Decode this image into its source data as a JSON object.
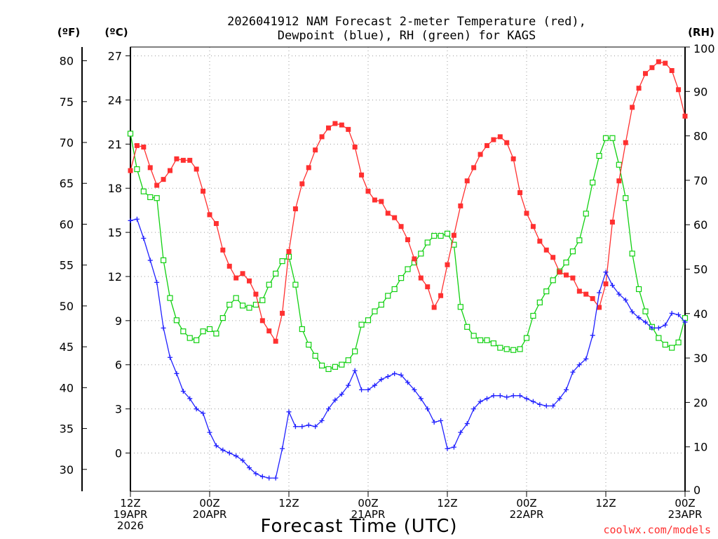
{
  "chart_data": {
    "type": "line",
    "title_line1": "2026041912 NAM Forecast 2-meter Temperature (red),",
    "title_line2": "Dewpoint (blue), RH (green) for KAGS",
    "unit_f": "(ºF)",
    "unit_c": "(ºC)",
    "unit_rh": "(RH)",
    "xlabel": "Forecast Time (UTC)",
    "credit": "coolwx.com/models",
    "x_range_hours": [
      0,
      84
    ],
    "x_ticks": [
      {
        "h": 0,
        "l1": "12Z",
        "l2": "19APR",
        "l3": "2026"
      },
      {
        "h": 12,
        "l1": "00Z",
        "l2": "20APR",
        "l3": ""
      },
      {
        "h": 24,
        "l1": "12Z",
        "l2": "",
        "l3": ""
      },
      {
        "h": 36,
        "l1": "00Z",
        "l2": "21APR",
        "l3": ""
      },
      {
        "h": 48,
        "l1": "12Z",
        "l2": "",
        "l3": ""
      },
      {
        "h": 60,
        "l1": "00Z",
        "l2": "22APR",
        "l3": ""
      },
      {
        "h": 72,
        "l1": "12Z",
        "l2": "",
        "l3": ""
      },
      {
        "h": 84,
        "l1": "00Z",
        "l2": "23APR",
        "l3": ""
      }
    ],
    "c_range": [
      -2.6,
      27.6
    ],
    "c_ticks": [
      0,
      3,
      6,
      9,
      12,
      15,
      18,
      21,
      24,
      27
    ],
    "f_ticks": [
      30,
      35,
      40,
      45,
      50,
      55,
      60,
      65,
      70,
      75,
      80
    ],
    "rh_range": [
      0,
      100
    ],
    "rh_ticks": [
      0,
      10,
      20,
      30,
      40,
      50,
      60,
      70,
      80,
      90,
      100
    ],
    "grid": true,
    "hours": [
      0,
      1,
      2,
      3,
      4,
      5,
      6,
      7,
      8,
      9,
      10,
      11,
      12,
      13,
      14,
      15,
      16,
      17,
      18,
      19,
      20,
      21,
      22,
      23,
      24,
      25,
      26,
      27,
      28,
      29,
      30,
      31,
      32,
      33,
      34,
      35,
      36,
      37,
      38,
      39,
      40,
      41,
      42,
      43,
      44,
      45,
      46,
      47,
      48,
      49,
      50,
      51,
      52,
      53,
      54,
      55,
      56,
      57,
      58,
      59,
      60,
      61,
      62,
      63,
      64,
      65,
      66,
      67,
      68,
      69,
      70,
      71,
      72,
      73,
      74,
      75,
      76,
      77,
      78,
      79,
      80,
      81,
      82,
      83,
      84
    ],
    "series": [
      {
        "name": "Temperature",
        "color": "#ff3030",
        "marker": "filled-square",
        "axis": "C",
        "values": [
          19.2,
          20.9,
          20.8,
          19.4,
          18.2,
          18.6,
          19.2,
          20.0,
          19.9,
          19.9,
          19.3,
          17.8,
          16.2,
          15.6,
          13.8,
          12.7,
          11.9,
          12.2,
          11.7,
          10.8,
          9.0,
          8.3,
          7.6,
          9.5,
          13.7,
          16.6,
          18.3,
          19.4,
          20.6,
          21.5,
          22.1,
          22.4,
          22.3,
          22.0,
          20.8,
          18.9,
          17.8,
          17.2,
          17.1,
          16.3,
          16.0,
          15.4,
          14.5,
          13.2,
          11.9,
          11.3,
          9.9,
          10.7,
          12.8,
          14.8,
          16.8,
          18.5,
          19.4,
          20.3,
          20.9,
          21.3,
          21.5,
          21.1,
          20.0,
          17.7,
          16.3,
          15.4,
          14.4,
          13.8,
          13.3,
          12.3,
          12.1,
          11.9,
          11.0,
          10.8,
          10.5,
          9.9,
          11.5,
          15.7,
          18.5,
          21.1,
          23.5,
          24.8,
          25.8,
          26.2,
          26.6,
          26.5,
          26.0,
          24.7,
          22.9
        ]
      },
      {
        "name": "Dewpoint",
        "color": "#2020ff",
        "marker": "plus",
        "axis": "C",
        "values": [
          15.8,
          15.9,
          14.6,
          13.1,
          11.6,
          8.5,
          6.5,
          5.4,
          4.2,
          3.7,
          3.0,
          2.7,
          1.4,
          0.5,
          0.2,
          0.0,
          -0.2,
          -0.5,
          -1.0,
          -1.4,
          -1.6,
          -1.7,
          -1.7,
          0.3,
          2.8,
          1.8,
          1.8,
          1.9,
          1.8,
          2.2,
          3.0,
          3.6,
          4.0,
          4.6,
          5.6,
          4.3,
          4.3,
          4.6,
          5.0,
          5.2,
          5.4,
          5.3,
          4.8,
          4.3,
          3.7,
          3.0,
          2.1,
          2.2,
          0.3,
          0.4,
          1.4,
          2.0,
          3.0,
          3.5,
          3.7,
          3.9,
          3.9,
          3.8,
          3.9,
          3.9,
          3.7,
          3.5,
          3.3,
          3.2,
          3.2,
          3.7,
          4.3,
          5.5,
          6.0,
          6.4,
          8.0,
          10.9,
          12.3,
          11.4,
          10.8,
          10.4,
          9.6,
          9.2,
          8.9,
          8.5,
          8.5,
          8.7,
          9.5,
          9.4,
          8.9
        ]
      },
      {
        "name": "RH",
        "color": "#10d010",
        "marker": "open-square",
        "axis": "RH",
        "values": [
          80.5,
          72.5,
          67.5,
          66.2,
          66.0,
          52.0,
          43.5,
          38.5,
          36.0,
          34.5,
          34.0,
          36.0,
          36.5,
          35.5,
          39.0,
          42.0,
          43.5,
          41.8,
          41.3,
          42.0,
          43.0,
          46.5,
          49.0,
          51.8,
          52.8,
          46.5,
          36.5,
          33.0,
          30.5,
          28.3,
          27.5,
          28.0,
          28.5,
          29.5,
          31.5,
          37.5,
          38.5,
          40.5,
          42.0,
          44.0,
          45.5,
          48.0,
          50.0,
          51.5,
          53.5,
          56.0,
          57.5,
          57.5,
          58.0,
          55.5,
          41.5,
          37.0,
          35.0,
          34.0,
          34.0,
          33.3,
          32.3,
          32.0,
          31.8,
          32.0,
          34.5,
          39.5,
          42.5,
          45.0,
          47.5,
          49.5,
          51.5,
          54.0,
          56.5,
          62.5,
          69.5,
          75.5,
          79.5,
          79.5,
          73.5,
          66.0,
          53.5,
          45.5,
          40.5,
          37.0,
          34.5,
          33.0,
          32.3,
          33.5,
          39.0
        ]
      }
    ]
  }
}
